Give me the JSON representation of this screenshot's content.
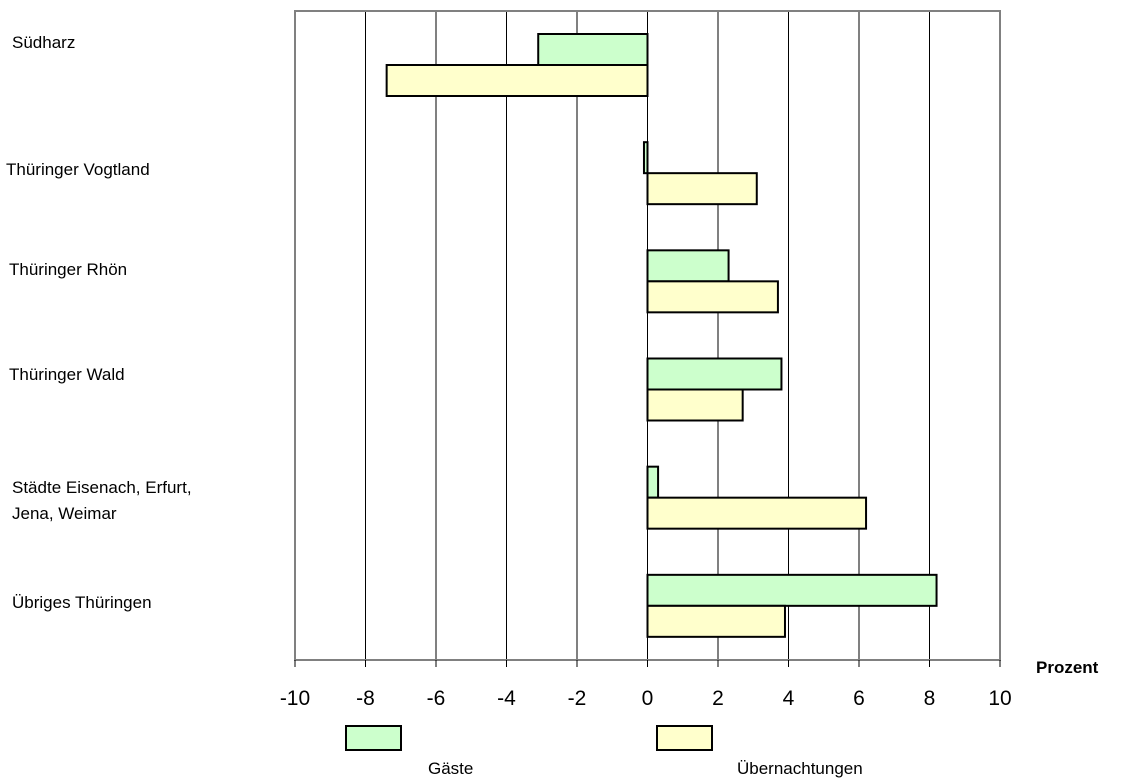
{
  "chart_data": {
    "type": "bar",
    "orientation": "horizontal",
    "categories": [
      "Südharz",
      "Thüringer Vogtland",
      "Thüringer Rhön",
      "Thüringer Wald",
      "Städte Eisenach, Erfurt,\nJena, Weimar",
      "Übriges Thüringen"
    ],
    "series": [
      {
        "name": "Gäste",
        "color": "#ccffcc",
        "values": [
          -3.1,
          -0.1,
          2.3,
          3.8,
          0.3,
          8.2
        ]
      },
      {
        "name": "Übernachtungen",
        "color": "#ffffcc",
        "values": [
          -7.4,
          3.1,
          3.7,
          2.7,
          6.2,
          3.9
        ]
      }
    ],
    "xlabel": "Prozent",
    "xlim": [
      -10,
      10
    ],
    "xticks": [
      "-10",
      "-8",
      "-6",
      "-4",
      "-2",
      "0",
      "2",
      "4",
      "6",
      "8",
      "10"
    ],
    "grid": "vertical",
    "legend_position": "bottom"
  }
}
